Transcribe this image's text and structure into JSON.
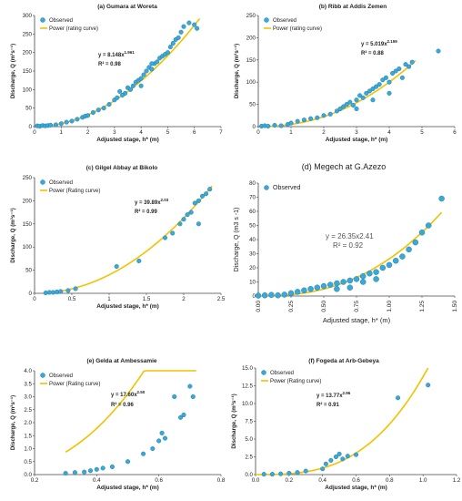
{
  "chart_data": [
    {
      "type": "scatter",
      "title": "(a) Gumara at Woreta",
      "xlabel": "Adjusted stage, h* (m)",
      "ylabel": "Discharge, Q (m³s⁻¹)",
      "xlim": [
        0,
        7
      ],
      "ylim": [
        0,
        300
      ],
      "xticks": [
        "0",
        "1",
        "2",
        "3",
        "4",
        "5",
        "6",
        "7"
      ],
      "yticks": [
        "0",
        "50",
        "100",
        "150",
        "200",
        "250",
        "300"
      ],
      "legend": {
        "placement": "top-left",
        "entries": [
          "Observed",
          "Power (rating curve)"
        ]
      },
      "equation": "y = 8.148x",
      "exponent": "1.961",
      "r2": "R² = 0.98",
      "curve": {
        "a": 8.148,
        "b": 1.961,
        "xmin": 0.1,
        "xmax": 6.2
      },
      "series": [
        {
          "name": "Observed",
          "points": [
            [
              0.1,
              2
            ],
            [
              0.2,
              1
            ],
            [
              0.3,
              3
            ],
            [
              0.4,
              2
            ],
            [
              0.5,
              3
            ],
            [
              0.6,
              4
            ],
            [
              0.8,
              5
            ],
            [
              1.0,
              8
            ],
            [
              1.2,
              12
            ],
            [
              1.4,
              15
            ],
            [
              1.6,
              20
            ],
            [
              1.8,
              25
            ],
            [
              1.9,
              28
            ],
            [
              2.0,
              30
            ],
            [
              2.2,
              38
            ],
            [
              2.4,
              45
            ],
            [
              2.6,
              50
            ],
            [
              2.8,
              60
            ],
            [
              3.0,
              72
            ],
            [
              3.1,
              78
            ],
            [
              3.2,
              95
            ],
            [
              3.4,
              90
            ],
            [
              3.5,
              105
            ],
            [
              3.6,
              100
            ],
            [
              3.7,
              110
            ],
            [
              3.8,
              120
            ],
            [
              3.9,
              125
            ],
            [
              4.0,
              130
            ],
            [
              4.1,
              140
            ],
            [
              4.2,
              150
            ],
            [
              4.3,
              160
            ],
            [
              4.4,
              155
            ],
            [
              4.5,
              170
            ],
            [
              4.6,
              175
            ],
            [
              4.7,
              185
            ],
            [
              4.8,
              190
            ],
            [
              4.9,
              195
            ],
            [
              5.0,
              200
            ],
            [
              5.1,
              215
            ],
            [
              5.2,
              225
            ],
            [
              5.3,
              235
            ],
            [
              5.4,
              240
            ],
            [
              5.5,
              255
            ],
            [
              5.6,
              270
            ],
            [
              5.8,
              280
            ],
            [
              6.0,
              275
            ],
            [
              6.1,
              265
            ],
            [
              4.0,
              110
            ],
            [
              3.3,
              85
            ],
            [
              4.4,
              170
            ]
          ]
        }
      ],
      "curve_label": "Power (rating curve)"
    },
    {
      "type": "scatter",
      "title": "(b) Ribb at Addis Zemen",
      "xlabel": "Adjusted stage, h* (m)",
      "ylabel": "Discharge, Q (m³s⁻¹)",
      "xlim": [
        0,
        6
      ],
      "ylim": [
        0,
        250
      ],
      "xticks": [
        "0",
        "1",
        "2",
        "3",
        "4",
        "5",
        "6"
      ],
      "yticks": [
        "0",
        "50",
        "100",
        "150",
        "200",
        "250"
      ],
      "legend": {
        "placement": "top-left",
        "entries": [
          "Observed",
          "Power (rating curve)"
        ]
      },
      "equation": "y = 5.019x",
      "exponent": "2.159",
      "r2": "R² = 0.88",
      "curve": {
        "a": 5.019,
        "b": 2.159,
        "xmin": 0.05,
        "xmax": 4.8
      },
      "series": [
        {
          "name": "Observed",
          "points": [
            [
              0.1,
              1
            ],
            [
              0.2,
              2
            ],
            [
              0.3,
              1
            ],
            [
              0.5,
              3
            ],
            [
              0.7,
              2
            ],
            [
              0.9,
              5
            ],
            [
              1.0,
              8
            ],
            [
              1.2,
              12
            ],
            [
              1.4,
              15
            ],
            [
              1.6,
              18
            ],
            [
              1.8,
              20
            ],
            [
              2.0,
              25
            ],
            [
              2.2,
              28
            ],
            [
              2.4,
              35
            ],
            [
              2.5,
              40
            ],
            [
              2.6,
              45
            ],
            [
              2.7,
              50
            ],
            [
              2.8,
              55
            ],
            [
              2.9,
              48
            ],
            [
              3.0,
              60
            ],
            [
              3.1,
              70
            ],
            [
              3.2,
              65
            ],
            [
              3.3,
              75
            ],
            [
              3.4,
              80
            ],
            [
              3.5,
              85
            ],
            [
              3.6,
              90
            ],
            [
              3.7,
              95
            ],
            [
              3.8,
              105
            ],
            [
              3.9,
              110
            ],
            [
              4.0,
              100
            ],
            [
              4.1,
              120
            ],
            [
              4.2,
              125
            ],
            [
              4.3,
              130
            ],
            [
              4.4,
              110
            ],
            [
              4.5,
              140
            ],
            [
              4.6,
              135
            ],
            [
              4.7,
              145
            ],
            [
              3.5,
              60
            ],
            [
              3.0,
              40
            ],
            [
              4.0,
              75
            ],
            [
              5.5,
              170
            ]
          ]
        }
      ],
      "curve_label": "Power (rating curve)"
    },
    {
      "type": "scatter",
      "title": "(c) Gilgel Abbay at Bikolo",
      "xlabel": "Adjusted stage, h* (m)",
      "ylabel": "Discharge, Q (m³s⁻¹)",
      "xlim": [
        0,
        2.5
      ],
      "ylim": [
        0,
        250
      ],
      "xticks": [
        "0",
        "0.5",
        "1",
        "1.5",
        "2",
        "2.5"
      ],
      "yticks": [
        "0",
        "50",
        "100",
        "150",
        "200",
        "250"
      ],
      "legend": {
        "placement": "top-left",
        "entries": [
          "Observed",
          "Power (Rating curve)"
        ]
      },
      "equation": "y = 39.89x",
      "exponent": "2.03",
      "r2": "R² = 0.99",
      "curve": {
        "a": 39.89,
        "b": 2.03,
        "xmin": 0.15,
        "xmax": 2.38
      },
      "series": [
        {
          "name": "Observed",
          "points": [
            [
              0.15,
              1
            ],
            [
              0.2,
              2
            ],
            [
              0.25,
              2
            ],
            [
              0.3,
              3
            ],
            [
              0.35,
              4
            ],
            [
              0.45,
              6
            ],
            [
              0.55,
              10
            ],
            [
              1.1,
              58
            ],
            [
              1.4,
              70
            ],
            [
              1.75,
              120
            ],
            [
              1.85,
              130
            ],
            [
              1.95,
              150
            ],
            [
              2.0,
              160
            ],
            [
              2.05,
              170
            ],
            [
              2.1,
              175
            ],
            [
              2.15,
              195
            ],
            [
              2.2,
              200
            ],
            [
              2.25,
              210
            ],
            [
              2.3,
              215
            ],
            [
              2.35,
              225
            ],
            [
              2.2,
              150
            ]
          ]
        }
      ],
      "curve_label": "Power (Rating curve)"
    },
    {
      "type": "scatter",
      "title": "(d) Megech at G.Azezo",
      "xlabel": "Adjusted stage, h* (m)",
      "ylabel": "Discharge, Q (m3 s -1)",
      "xlim": [
        0,
        1.5
      ],
      "ylim": [
        0,
        80
      ],
      "xticks": [
        "0.00",
        "0.25",
        "0.50",
        "0.75",
        "1.00",
        "1.25",
        "1.50"
      ],
      "yticks": [
        "0",
        "10",
        "20",
        "30",
        "40",
        "50",
        "60",
        "70",
        "80"
      ],
      "legend": {
        "placement": "top-left",
        "entries": [
          "Observed"
        ]
      },
      "equation": "y = 26.35x2.41",
      "exponent": "",
      "r2": "R² = 0.92",
      "curve": {
        "a": 26.35,
        "b": 2.41,
        "xmin": 0.0,
        "xmax": 1.4
      },
      "series": [
        {
          "name": "Observed",
          "points": [
            [
              0.0,
              0.3
            ],
            [
              0.05,
              0.5
            ],
            [
              0.1,
              0.8
            ],
            [
              0.15,
              0.5
            ],
            [
              0.2,
              1
            ],
            [
              0.25,
              2
            ],
            [
              0.3,
              3
            ],
            [
              0.35,
              4
            ],
            [
              0.4,
              5
            ],
            [
              0.45,
              6
            ],
            [
              0.5,
              7
            ],
            [
              0.55,
              8
            ],
            [
              0.6,
              9
            ],
            [
              0.65,
              10
            ],
            [
              0.7,
              11
            ],
            [
              0.75,
              12
            ],
            [
              0.8,
              14
            ],
            [
              0.85,
              16
            ],
            [
              0.9,
              17
            ],
            [
              0.95,
              20
            ],
            [
              1.0,
              22
            ],
            [
              1.05,
              25
            ],
            [
              1.1,
              28
            ],
            [
              1.15,
              33
            ],
            [
              1.2,
              38
            ],
            [
              1.25,
              45
            ],
            [
              1.3,
              50
            ],
            [
              1.4,
              69
            ],
            [
              0.6,
              5
            ],
            [
              0.7,
              6
            ],
            [
              0.8,
              10
            ],
            [
              0.9,
              12
            ]
          ]
        }
      ],
      "curve_label": ""
    },
    {
      "type": "scatter",
      "title": "(e) Gelda at Ambessamie",
      "xlabel": "Adjusted stage, h* (m)",
      "ylabel": "Discharge, Q (m³s⁻¹)",
      "xlim": [
        0.2,
        0.8
      ],
      "ylim": [
        0,
        4
      ],
      "xticks": [
        "0.2",
        "0.4",
        "0.6",
        "0.8"
      ],
      "yticks": [
        "0.0",
        "0.5",
        "1.0",
        "1.5",
        "2.0",
        "2.5",
        "3.0",
        "3.5",
        "4.0"
      ],
      "legend": {
        "placement": "top-left",
        "entries": [
          "Observed",
          "Power (Rating curve)"
        ]
      },
      "equation": "y = 17.60x",
      "exponent": "2.50",
      "r2": "R² = 0.96",
      "curve": {
        "a": 17.6,
        "b": 2.5,
        "xmin": 0.3,
        "xmax": 0.72
      },
      "series": [
        {
          "name": "Observed",
          "points": [
            [
              0.3,
              0.05
            ],
            [
              0.33,
              0.08
            ],
            [
              0.36,
              0.1
            ],
            [
              0.38,
              0.15
            ],
            [
              0.4,
              0.2
            ],
            [
              0.42,
              0.25
            ],
            [
              0.45,
              0.3
            ],
            [
              0.5,
              0.5
            ],
            [
              0.55,
              0.8
            ],
            [
              0.58,
              1.0
            ],
            [
              0.6,
              1.3
            ],
            [
              0.61,
              1.6
            ],
            [
              0.62,
              1.4
            ],
            [
              0.65,
              3.0
            ],
            [
              0.67,
              2.2
            ],
            [
              0.68,
              2.3
            ],
            [
              0.7,
              3.4
            ],
            [
              0.71,
              3.0
            ]
          ]
        }
      ],
      "curve_label": "Power (Rating curve)"
    },
    {
      "type": "scatter",
      "title": "(f) Fogeda at Arb-Gebeya",
      "xlabel": "Adjusted stage, h* (m)",
      "ylabel": "Discharge, Q (m³s⁻¹)",
      "xlim": [
        0,
        1.2
      ],
      "ylim": [
        0,
        15
      ],
      "xticks": [
        "0.0",
        "0.2",
        "0.4",
        "0.6",
        "0.8",
        "1.0",
        "1.2"
      ],
      "yticks": [
        "0.0",
        "2.5",
        "5.0",
        "7.5",
        "10.0",
        "12.5",
        "15.0"
      ],
      "legend": {
        "placement": "top-left",
        "entries": [
          "Observed",
          "Power (Rating curve)"
        ]
      },
      "equation": "y = 13.77x",
      "exponent": "2.96",
      "r2": "R² = 0.91",
      "curve": {
        "a": 13.77,
        "b": 2.96,
        "xmin": 0.0,
        "xmax": 1.03
      },
      "series": [
        {
          "name": "Observed",
          "points": [
            [
              0.05,
              0.05
            ],
            [
              0.1,
              0.05
            ],
            [
              0.15,
              0.1
            ],
            [
              0.2,
              0.2
            ],
            [
              0.25,
              0.3
            ],
            [
              0.3,
              0.5
            ],
            [
              0.4,
              0.8
            ],
            [
              0.42,
              1.5
            ],
            [
              0.45,
              2.0
            ],
            [
              0.48,
              2.5
            ],
            [
              0.5,
              2.9
            ],
            [
              0.52,
              2.2
            ],
            [
              0.55,
              2.6
            ],
            [
              0.6,
              2.8
            ],
            [
              0.85,
              10.8
            ],
            [
              1.03,
              12.6
            ]
          ]
        }
      ],
      "curve_label": "Power (Rating curve)"
    }
  ],
  "colors": {
    "point_fill": "#3aa8d8",
    "point_stroke": "#1f7ea8",
    "curve": "#f2c200",
    "axis": "#444444",
    "text": "#222222"
  }
}
